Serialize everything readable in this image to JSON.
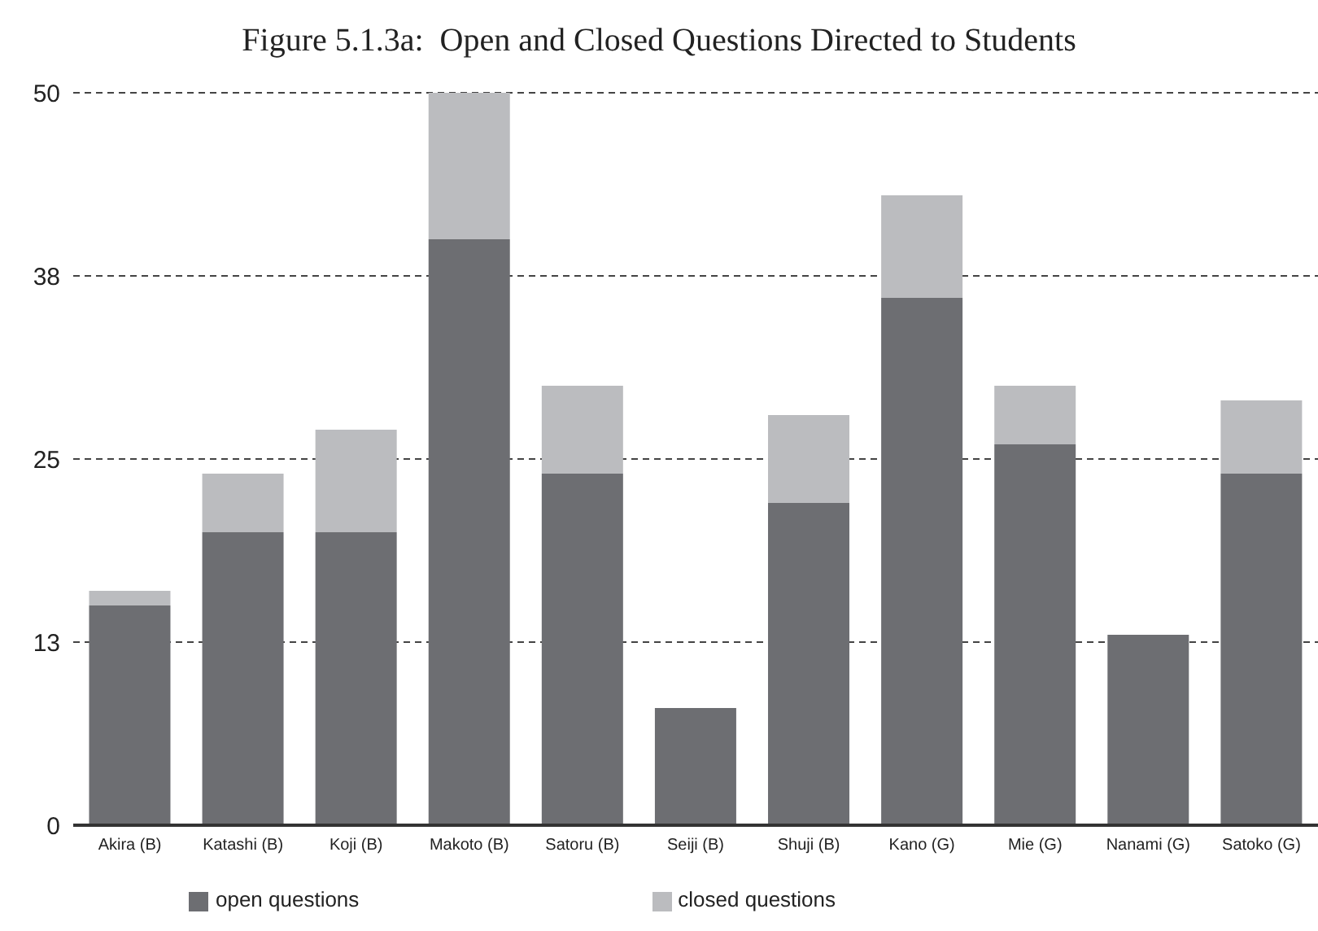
{
  "chart_data": {
    "type": "bar",
    "title": "Figure 5.1.3a:  Open and Closed Questions Directed to Students",
    "categories": [
      "Akira (B)",
      "Katashi (B)",
      "Koji (B)",
      "Makoto (B)",
      "Satoru (B)",
      "Seiji (B)",
      "Shuji (B)",
      "Kano (G)",
      "Mie (G)",
      "Nanami (G)",
      "Satoko (G)"
    ],
    "series": [
      {
        "name": "open questions",
        "color": "#6d6e72",
        "values": [
          15,
          20,
          20,
          40,
          24,
          8,
          22,
          36,
          26,
          13,
          24
        ]
      },
      {
        "name": "closed questions",
        "color": "#bbbcbf",
        "values": [
          1,
          4,
          7,
          10,
          6,
          0,
          6,
          7,
          4,
          0,
          5
        ]
      }
    ],
    "stacked": true,
    "ylim": [
      0,
      50
    ],
    "yticks": [
      0,
      {
        "value": 12.5,
        "label": "13"
      },
      25,
      {
        "value": 37.5,
        "label": "38"
      },
      50
    ],
    "grid": "y",
    "legend": "bottom"
  }
}
